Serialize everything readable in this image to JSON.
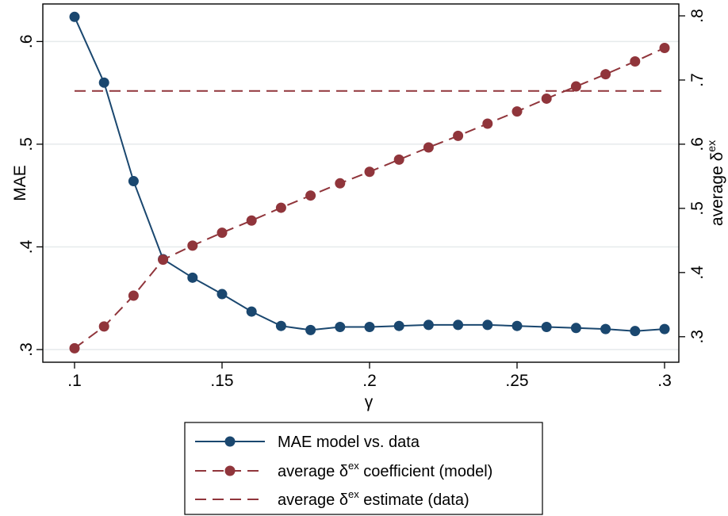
{
  "chart_data": {
    "type": "line",
    "title": "",
    "xlabel": "γ",
    "ylabel_left": "MAE",
    "ylabel_right": {
      "base": "average δ",
      "sup": "ex"
    },
    "xlim": [
      0.1,
      0.3
    ],
    "ylim_left": [
      0.3,
      0.625
    ],
    "ylim_right": [
      0.28,
      0.8
    ],
    "x_ticks": [
      {
        "value": 0.1,
        "label": ".1"
      },
      {
        "value": 0.15,
        "label": ".15"
      },
      {
        "value": 0.2,
        "label": ".2"
      },
      {
        "value": 0.25,
        "label": ".25"
      },
      {
        "value": 0.3,
        "label": ".3"
      }
    ],
    "y_left_ticks": [
      {
        "value": 0.3,
        "label": ".3"
      },
      {
        "value": 0.4,
        "label": ".4"
      },
      {
        "value": 0.5,
        "label": ".5"
      },
      {
        "value": 0.6,
        "label": ".6"
      }
    ],
    "y_right_ticks": [
      {
        "value": 0.3,
        "label": ".3"
      },
      {
        "value": 0.4,
        "label": ".4"
      },
      {
        "value": 0.5,
        "label": ".5"
      },
      {
        "value": 0.6,
        "label": ".6"
      },
      {
        "value": 0.7,
        "label": ".7"
      },
      {
        "value": 0.8,
        "label": ".8"
      }
    ],
    "grid": true,
    "x": [
      0.1,
      0.11,
      0.12,
      0.13,
      0.14,
      0.15,
      0.16,
      0.17,
      0.18,
      0.19,
      0.2,
      0.21,
      0.22,
      0.23,
      0.24,
      0.25,
      0.26,
      0.27,
      0.28,
      0.29,
      0.3
    ],
    "series": [
      {
        "name": "MAE model vs. data",
        "axis": "left",
        "color": "#1a476f",
        "line_style": "solid",
        "markers": true,
        "values": [
          0.624,
          0.56,
          0.464,
          0.388,
          0.37,
          0.354,
          0.337,
          0.323,
          0.319,
          0.322,
          0.322,
          0.323,
          0.324,
          0.324,
          0.324,
          0.323,
          0.322,
          0.321,
          0.32,
          0.318,
          0.32
        ]
      },
      {
        "name": {
          "base": "average δ",
          "sup": "ex",
          "rest": " coefficient (model)"
        },
        "axis": "right",
        "color": "#90353b",
        "line_style": "dashed",
        "markers": true,
        "values": [
          0.282,
          0.316,
          0.364,
          0.42,
          0.442,
          0.462,
          0.481,
          0.501,
          0.52,
          0.539,
          0.557,
          0.576,
          0.595,
          0.613,
          0.632,
          0.651,
          0.671,
          0.69,
          0.709,
          0.729,
          0.75
        ]
      },
      {
        "name": {
          "base": "average δ",
          "sup": "ex",
          "rest": " estimate (data)"
        },
        "axis": "right",
        "color": "#90353b",
        "line_style": "dashed",
        "markers": false,
        "constant": 0.683
      }
    ],
    "legend_position": "bottom"
  }
}
